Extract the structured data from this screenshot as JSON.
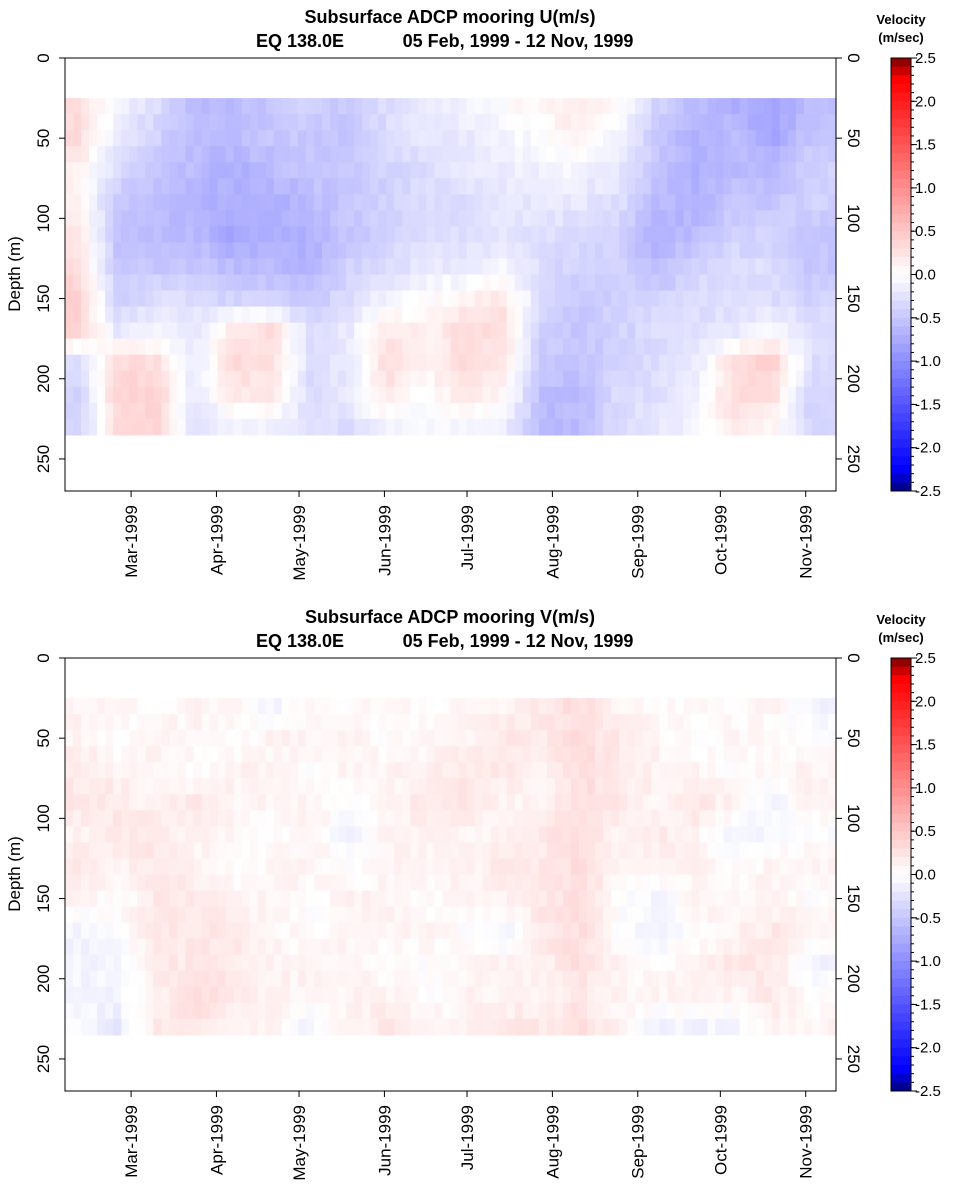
{
  "chart_data": [
    {
      "type": "heatmap",
      "title": "Subsurface ADCP mooring U(m/s)",
      "subtitle_location": "EQ 138.0E",
      "subtitle_dates": "05 Feb, 1999 - 12 Nov, 1999",
      "ylabel": "Depth (m)",
      "ylim": [
        270,
        0
      ],
      "y_ticks": [
        "0",
        "50",
        "100",
        "150",
        "200",
        "250"
      ],
      "x_range": [
        "1999-02-05",
        "1999-11-12"
      ],
      "x_ticks": [
        "Mar-1999",
        "Apr-1999",
        "May-1999",
        "Jun-1999",
        "Jul-1999",
        "Aug-1999",
        "Sep-1999",
        "Oct-1999",
        "Nov-1999"
      ],
      "data_depth_range": [
        25,
        235
      ],
      "colorbar": {
        "title_line1": "Velocity",
        "title_line2": "(m/sec)",
        "range": [
          -2.5,
          2.5
        ],
        "ticks": [
          "2.5",
          "2.0",
          "1.5",
          "1.0",
          "0.5",
          "0.0",
          "-0.5",
          "-1.0",
          "-1.5",
          "-2.0",
          "-2.5"
        ],
        "colors": {
          "max": "#7a0000",
          "high": "#ff0000",
          "zero": "#ffffff",
          "low": "#0000ff",
          "min": "#00007a"
        }
      },
      "depths": [
        30,
        50,
        70,
        90,
        110,
        130,
        150,
        170,
        190,
        210,
        230
      ],
      "times": [
        "1999-02-10",
        "1999-02-24",
        "1999-03-10",
        "1999-03-24",
        "1999-04-07",
        "1999-04-21",
        "1999-05-05",
        "1999-05-19",
        "1999-06-02",
        "1999-06-16",
        "1999-06-30",
        "1999-07-14",
        "1999-07-28",
        "1999-08-11",
        "1999-08-25",
        "1999-09-08",
        "1999-09-22",
        "1999-10-06",
        "1999-10-20",
        "1999-11-03"
      ],
      "values": [
        [
          0.3,
          -0.1,
          -0.3,
          -0.6,
          -0.6,
          -0.5,
          -0.4,
          -0.5,
          -0.3,
          -0.2,
          -0.1,
          0.0,
          0.1,
          0.2,
          0.0,
          -0.4,
          -0.6,
          -0.7,
          -0.8,
          -0.6
        ],
        [
          0.3,
          -0.2,
          -0.4,
          -0.6,
          -0.6,
          -0.5,
          -0.5,
          -0.5,
          -0.3,
          -0.2,
          -0.2,
          -0.1,
          0.0,
          0.1,
          -0.1,
          -0.5,
          -0.7,
          -0.6,
          -0.8,
          -0.5
        ],
        [
          0.1,
          -0.3,
          -0.5,
          -0.6,
          -0.7,
          -0.6,
          -0.5,
          -0.5,
          -0.4,
          -0.3,
          -0.2,
          -0.2,
          -0.1,
          -0.1,
          -0.2,
          -0.5,
          -0.7,
          -0.6,
          -0.6,
          -0.4
        ],
        [
          0.1,
          -0.5,
          -0.6,
          -0.7,
          -0.7,
          -0.7,
          -0.6,
          -0.5,
          -0.4,
          -0.3,
          -0.3,
          -0.2,
          -0.2,
          -0.2,
          -0.3,
          -0.6,
          -0.7,
          -0.5,
          -0.5,
          -0.4
        ],
        [
          0.2,
          -0.5,
          -0.6,
          -0.6,
          -0.8,
          -0.7,
          -0.7,
          -0.5,
          -0.4,
          -0.3,
          -0.3,
          -0.2,
          -0.3,
          -0.3,
          -0.4,
          -0.7,
          -0.6,
          -0.4,
          -0.4,
          -0.5
        ],
        [
          0.3,
          -0.5,
          -0.5,
          -0.5,
          -0.6,
          -0.6,
          -0.7,
          -0.4,
          -0.3,
          -0.2,
          -0.2,
          -0.1,
          -0.3,
          -0.4,
          -0.4,
          -0.6,
          -0.4,
          -0.3,
          -0.3,
          -0.5
        ],
        [
          0.4,
          -0.4,
          -0.3,
          -0.3,
          -0.4,
          -0.4,
          -0.5,
          -0.3,
          -0.1,
          0.0,
          0.1,
          0.2,
          -0.3,
          -0.5,
          -0.4,
          -0.4,
          -0.3,
          -0.3,
          -0.3,
          -0.4
        ],
        [
          0.4,
          -0.2,
          -0.1,
          -0.2,
          0.2,
          0.3,
          -0.3,
          -0.2,
          0.2,
          0.1,
          0.3,
          0.3,
          -0.4,
          -0.5,
          -0.4,
          -0.3,
          -0.3,
          -0.2,
          0.0,
          -0.3
        ],
        [
          -0.3,
          0.3,
          0.3,
          -0.2,
          0.3,
          0.3,
          -0.3,
          -0.2,
          0.3,
          0.1,
          0.3,
          0.2,
          -0.5,
          -0.5,
          -0.4,
          -0.3,
          -0.2,
          0.3,
          0.4,
          -0.3
        ],
        [
          -0.4,
          0.4,
          0.4,
          -0.2,
          0.2,
          0.2,
          -0.3,
          -0.2,
          0.2,
          0.0,
          0.2,
          0.1,
          -0.6,
          -0.6,
          -0.3,
          -0.3,
          -0.1,
          0.3,
          0.3,
          -0.4
        ],
        [
          -0.4,
          0.3,
          0.4,
          -0.3,
          -0.1,
          -0.1,
          -0.3,
          -0.3,
          -0.1,
          -0.1,
          -0.1,
          -0.1,
          -0.6,
          -0.6,
          -0.3,
          -0.2,
          -0.1,
          0.2,
          0.1,
          -0.4
        ]
      ]
    },
    {
      "type": "heatmap",
      "title": "Subsurface ADCP mooring V(m/s)",
      "subtitle_location": "EQ 138.0E",
      "subtitle_dates": "05 Feb, 1999 - 12 Nov, 1999",
      "ylabel": "Depth (m)",
      "ylim": [
        270,
        0
      ],
      "y_ticks": [
        "0",
        "50",
        "100",
        "150",
        "200",
        "250"
      ],
      "x_range": [
        "1999-02-05",
        "1999-11-12"
      ],
      "x_ticks": [
        "Mar-1999",
        "Apr-1999",
        "May-1999",
        "Jun-1999",
        "Jul-1999",
        "Aug-1999",
        "Sep-1999",
        "Oct-1999",
        "Nov-1999"
      ],
      "data_depth_range": [
        25,
        235
      ],
      "colorbar": {
        "title_line1": "Velocity",
        "title_line2": "(m/sec)",
        "range": [
          -2.5,
          2.5
        ],
        "ticks": [
          "2.5",
          "2.0",
          "1.5",
          "1.0",
          "0.5",
          "0.0",
          "-0.5",
          "-1.0",
          "-1.5",
          "-2.0",
          "-2.5"
        ],
        "colors": {
          "max": "#7a0000",
          "high": "#ff0000",
          "zero": "#ffffff",
          "low": "#0000ff",
          "min": "#00007a"
        }
      },
      "depths": [
        30,
        50,
        70,
        90,
        110,
        130,
        150,
        170,
        190,
        210,
        230
      ],
      "times": [
        "1999-02-10",
        "1999-02-24",
        "1999-03-10",
        "1999-03-24",
        "1999-04-07",
        "1999-04-21",
        "1999-05-05",
        "1999-05-19",
        "1999-06-02",
        "1999-06-16",
        "1999-06-30",
        "1999-07-14",
        "1999-07-28",
        "1999-08-11",
        "1999-08-25",
        "1999-09-08",
        "1999-09-22",
        "1999-10-06",
        "1999-10-20",
        "1999-11-03"
      ],
      "values": [
        [
          0.1,
          0.1,
          0.0,
          0.1,
          0.1,
          -0.1,
          0.1,
          0.0,
          0.1,
          0.0,
          0.1,
          0.1,
          0.2,
          0.3,
          0.1,
          0.0,
          0.1,
          0.0,
          0.1,
          -0.1
        ],
        [
          0.1,
          0.0,
          0.1,
          0.1,
          0.0,
          0.1,
          0.1,
          0.1,
          0.0,
          0.1,
          0.1,
          0.2,
          0.2,
          0.3,
          0.2,
          0.1,
          0.0,
          0.1,
          0.0,
          0.0
        ],
        [
          0.2,
          0.1,
          0.1,
          0.0,
          0.1,
          0.1,
          0.0,
          0.1,
          0.1,
          0.1,
          0.2,
          0.2,
          0.1,
          0.3,
          0.2,
          0.1,
          0.1,
          0.0,
          0.1,
          0.1
        ],
        [
          0.2,
          0.2,
          0.1,
          0.2,
          0.1,
          0.1,
          0.1,
          0.0,
          0.1,
          0.2,
          0.2,
          0.1,
          0.1,
          0.3,
          0.2,
          0.1,
          0.2,
          0.1,
          -0.1,
          0.1
        ],
        [
          0.1,
          0.2,
          0.2,
          0.1,
          0.1,
          0.0,
          0.1,
          -0.1,
          0.1,
          0.1,
          0.1,
          0.1,
          0.2,
          0.3,
          0.1,
          0.2,
          0.1,
          -0.1,
          -0.1,
          0.0
        ],
        [
          0.2,
          0.1,
          0.2,
          0.1,
          0.0,
          0.1,
          0.1,
          0.0,
          0.1,
          0.1,
          0.1,
          0.2,
          0.2,
          0.3,
          0.1,
          0.1,
          0.1,
          0.0,
          0.1,
          0.1
        ],
        [
          0.1,
          0.0,
          0.2,
          0.2,
          0.1,
          0.1,
          0.0,
          0.1,
          0.1,
          0.0,
          0.1,
          0.1,
          0.2,
          0.3,
          0.0,
          -0.1,
          0.1,
          0.1,
          0.1,
          0.0
        ],
        [
          -0.1,
          0.0,
          0.2,
          0.2,
          0.2,
          0.1,
          0.0,
          0.1,
          0.1,
          0.1,
          0.0,
          -0.1,
          0.2,
          0.3,
          0.0,
          -0.1,
          0.0,
          0.1,
          0.2,
          0.1
        ],
        [
          -0.1,
          -0.1,
          0.2,
          0.2,
          0.2,
          0.1,
          0.1,
          0.1,
          0.0,
          0.0,
          0.1,
          0.1,
          0.1,
          0.3,
          0.1,
          0.0,
          0.1,
          0.2,
          0.2,
          -0.1
        ],
        [
          -0.1,
          -0.1,
          0.1,
          0.3,
          0.2,
          0.1,
          0.1,
          0.1,
          0.1,
          0.0,
          0.1,
          0.1,
          0.1,
          0.2,
          0.1,
          0.1,
          0.1,
          0.1,
          0.2,
          0.0
        ],
        [
          0.0,
          -0.2,
          0.2,
          0.2,
          0.1,
          0.1,
          -0.1,
          0.1,
          0.2,
          0.1,
          0.1,
          0.2,
          0.2,
          0.3,
          0.1,
          -0.1,
          -0.1,
          -0.1,
          0.1,
          0.1
        ]
      ]
    }
  ]
}
